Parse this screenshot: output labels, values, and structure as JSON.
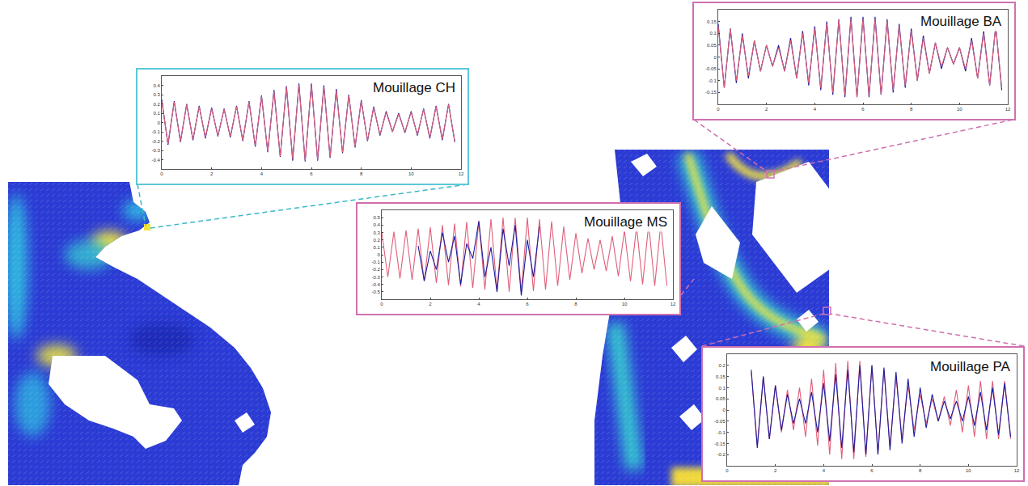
{
  "chart_data": [
    {
      "type": "line",
      "title": "Mouillage CH",
      "x": [
        0,
        0.25,
        0.5,
        0.75,
        1,
        1.25,
        1.5,
        1.75,
        2,
        2.25,
        2.5,
        2.75,
        3,
        3.25,
        3.5,
        3.75,
        4,
        4.25,
        4.5,
        4.75,
        5,
        5.25,
        5.5,
        5.75,
        6,
        6.25,
        6.5,
        6.75,
        7,
        7.25,
        7.5,
        7.75,
        8,
        8.25,
        8.5,
        8.75,
        9,
        9.25,
        9.5,
        9.75,
        10,
        10.25,
        10.5,
        10.75,
        11,
        11.25,
        11.5,
        11.75
      ],
      "xlim": [
        0,
        12
      ],
      "xticks": [
        0,
        2,
        4,
        6,
        8,
        10,
        12
      ],
      "ylim": [
        -0.5,
        0.5
      ],
      "yticks": [
        -0.4,
        -0.3,
        -0.2,
        -0.1,
        0,
        0.1,
        0.2,
        0.3,
        0.4
      ],
      "grid": false,
      "series": [
        {
          "color": "#1c1c9c",
          "values": [
            0.25,
            -0.24,
            0.23,
            -0.21,
            0.2,
            -0.19,
            0.18,
            -0.17,
            0.16,
            -0.15,
            0.15,
            -0.16,
            0.18,
            -0.2,
            0.23,
            -0.26,
            0.29,
            -0.32,
            0.35,
            -0.37,
            0.39,
            -0.41,
            0.42,
            -0.42,
            0.42,
            -0.41,
            0.4,
            -0.38,
            0.36,
            -0.33,
            0.3,
            -0.27,
            0.24,
            -0.2,
            0.17,
            -0.14,
            0.12,
            -0.1,
            0.1,
            -0.11,
            0.12,
            -0.14,
            0.15,
            -0.17,
            0.18,
            -0.19,
            0.2,
            -0.21
          ]
        },
        {
          "color": "#e0607a",
          "values": [
            0.23,
            -0.23,
            0.22,
            -0.2,
            0.19,
            -0.18,
            0.17,
            -0.16,
            0.15,
            -0.14,
            0.14,
            -0.15,
            0.17,
            -0.19,
            0.22,
            -0.25,
            0.28,
            -0.31,
            0.33,
            -0.36,
            0.38,
            -0.39,
            0.4,
            -0.41,
            0.4,
            -0.4,
            0.38,
            -0.37,
            0.34,
            -0.32,
            0.29,
            -0.26,
            0.23,
            -0.19,
            0.16,
            -0.13,
            0.11,
            -0.1,
            0.09,
            -0.1,
            0.11,
            -0.13,
            0.14,
            -0.16,
            0.17,
            -0.18,
            0.19,
            -0.2
          ]
        }
      ]
    },
    {
      "type": "line",
      "title": "Mouillage BA",
      "x": [
        0,
        0.25,
        0.5,
        0.75,
        1,
        1.25,
        1.5,
        1.75,
        2,
        2.25,
        2.5,
        2.75,
        3,
        3.25,
        3.5,
        3.75,
        4,
        4.25,
        4.5,
        4.75,
        5,
        5.25,
        5.5,
        5.75,
        6,
        6.25,
        6.5,
        6.75,
        7,
        7.25,
        7.5,
        7.75,
        8,
        8.25,
        8.5,
        8.75,
        9,
        9.25,
        9.5,
        9.75,
        10,
        10.25,
        10.5,
        10.75,
        11,
        11.25,
        11.5,
        11.75
      ],
      "xlim": [
        0,
        12
      ],
      "xticks": [
        0,
        2,
        4,
        6,
        8,
        10,
        12
      ],
      "ylim": [
        -0.2,
        0.2
      ],
      "yticks": [
        -0.15,
        -0.1,
        -0.05,
        0,
        0.05,
        0.1,
        0.15
      ],
      "grid": false,
      "series": [
        {
          "color": "#1c1c9c",
          "values": [
            0.14,
            -0.13,
            0.12,
            -0.11,
            0.1,
            -0.09,
            0.07,
            -0.06,
            0.05,
            -0.04,
            0.05,
            -0.06,
            0.08,
            -0.09,
            0.11,
            -0.12,
            0.13,
            -0.14,
            0.15,
            -0.16,
            0.16,
            -0.17,
            0.17,
            -0.17,
            0.17,
            -0.17,
            0.17,
            -0.16,
            0.16,
            -0.15,
            0.14,
            -0.13,
            0.12,
            -0.1,
            0.09,
            -0.07,
            0.06,
            -0.05,
            0.04,
            -0.03,
            0.04,
            -0.06,
            0.08,
            -0.09,
            0.11,
            -0.12,
            0.13,
            -0.14
          ]
        },
        {
          "color": "#e0607a",
          "values": [
            0.13,
            -0.13,
            0.12,
            -0.1,
            0.09,
            -0.08,
            0.07,
            -0.06,
            0.05,
            -0.04,
            0.04,
            -0.06,
            0.07,
            -0.09,
            0.1,
            -0.11,
            0.12,
            -0.13,
            0.14,
            -0.15,
            0.16,
            -0.16,
            0.16,
            -0.17,
            0.16,
            -0.16,
            0.16,
            -0.16,
            0.15,
            -0.14,
            0.13,
            -0.12,
            0.11,
            -0.1,
            0.08,
            -0.07,
            0.06,
            -0.04,
            0.04,
            -0.03,
            0.04,
            -0.05,
            0.07,
            -0.09,
            0.1,
            -0.12,
            0.13,
            -0.13
          ]
        }
      ]
    },
    {
      "type": "line",
      "title": "Mouillage MS",
      "x": [
        0,
        0.25,
        0.5,
        0.75,
        1,
        1.25,
        1.5,
        1.75,
        2,
        2.25,
        2.5,
        2.75,
        3,
        3.25,
        3.5,
        3.75,
        4,
        4.25,
        4.5,
        4.75,
        5,
        5.25,
        5.5,
        5.75,
        6,
        6.25,
        6.5,
        6.75,
        7,
        7.25,
        7.5,
        7.75,
        8,
        8.25,
        8.5,
        8.75,
        9,
        9.25,
        9.5,
        9.75,
        10,
        10.25,
        10.5,
        10.75,
        11,
        11.25,
        11.5,
        11.75
      ],
      "xlim": [
        0,
        12
      ],
      "xticks": [
        0,
        2,
        4,
        6,
        8,
        10,
        12
      ],
      "ylim": [
        -0.6,
        0.6
      ],
      "yticks": [
        -0.5,
        -0.4,
        -0.3,
        -0.2,
        -0.1,
        0,
        0.1,
        0.2,
        0.3,
        0.4,
        0.5
      ],
      "grid": false,
      "series": [
        {
          "color": "#e0607a",
          "values": [
            0.3,
            -0.3,
            0.31,
            -0.32,
            0.33,
            -0.34,
            0.35,
            -0.36,
            0.37,
            -0.38,
            0.4,
            -0.41,
            0.42,
            -0.43,
            0.44,
            -0.45,
            0.46,
            -0.47,
            0.48,
            -0.49,
            0.5,
            -0.5,
            0.5,
            -0.5,
            0.5,
            -0.49,
            0.48,
            -0.47,
            0.45,
            -0.42,
            0.38,
            -0.34,
            0.29,
            -0.25,
            0.22,
            -0.2,
            0.2,
            -0.22,
            0.25,
            -0.29,
            0.33,
            -0.36,
            0.38,
            -0.4,
            0.41,
            -0.42,
            0.42,
            -0.42
          ]
        },
        {
          "color": "#1c1c9c",
          "values": [
            null,
            null,
            null,
            null,
            null,
            null,
            0.12,
            -0.35,
            0.05,
            -0.2,
            0.3,
            -0.1,
            0.25,
            -0.4,
            0.15,
            -0.05,
            0.45,
            -0.3,
            0.1,
            -0.5,
            0.35,
            -0.15,
            0.4,
            -0.55,
            0.2,
            -0.3,
            0.38,
            null,
            null,
            null,
            null,
            null,
            null,
            null,
            null,
            null,
            null,
            null,
            null,
            null,
            null,
            null,
            null,
            null,
            null,
            null,
            null,
            null
          ]
        }
      ]
    },
    {
      "type": "line",
      "title": "Mouillage PA",
      "x": [
        0,
        0.25,
        0.5,
        0.75,
        1,
        1.25,
        1.5,
        1.75,
        2,
        2.25,
        2.5,
        2.75,
        3,
        3.25,
        3.5,
        3.75,
        4,
        4.25,
        4.5,
        4.75,
        5,
        5.25,
        5.5,
        5.75,
        6,
        6.25,
        6.5,
        6.75,
        7,
        7.25,
        7.5,
        7.75,
        8,
        8.25,
        8.5,
        8.75,
        9,
        9.25,
        9.5,
        9.75,
        10,
        10.25,
        10.5,
        10.75,
        11,
        11.25,
        11.5,
        11.75
      ],
      "xlim": [
        0,
        12
      ],
      "xticks": [
        0,
        2,
        4,
        6,
        8,
        10,
        12
      ],
      "ylim": [
        -0.25,
        0.25
      ],
      "yticks": [
        -0.2,
        -0.15,
        -0.1,
        -0.05,
        0,
        0.05,
        0.1,
        0.15,
        0.2
      ],
      "grid": false,
      "series": [
        {
          "color": "#e0607a",
          "values": [
            null,
            null,
            null,
            null,
            0.17,
            -0.16,
            0.15,
            -0.13,
            0.11,
            -0.1,
            0.09,
            -0.09,
            0.1,
            -0.12,
            0.14,
            -0.16,
            0.18,
            -0.2,
            0.21,
            -0.22,
            0.22,
            -0.22,
            0.22,
            -0.21,
            0.2,
            -0.19,
            0.18,
            -0.16,
            0.15,
            -0.13,
            0.11,
            -0.09,
            0.07,
            -0.06,
            0.05,
            -0.05,
            0.06,
            -0.07,
            0.09,
            -0.1,
            0.11,
            -0.12,
            0.13,
            -0.13,
            0.13,
            -0.13,
            0.13,
            -0.13
          ]
        },
        {
          "color": "#1c1c9c",
          "values": [
            null,
            null,
            null,
            null,
            0.18,
            -0.17,
            0.15,
            -0.13,
            0.11,
            -0.09,
            0.07,
            -0.06,
            0.05,
            -0.06,
            0.08,
            -0.1,
            0.12,
            -0.14,
            0.16,
            -0.17,
            0.18,
            -0.19,
            0.2,
            -0.2,
            0.2,
            -0.2,
            0.19,
            -0.18,
            0.17,
            -0.15,
            0.14,
            -0.12,
            0.1,
            -0.08,
            0.07,
            -0.05,
            0.04,
            -0.04,
            0.04,
            -0.05,
            0.06,
            -0.07,
            0.08,
            -0.09,
            0.1,
            -0.11,
            0.12,
            -0.12
          ]
        }
      ]
    }
  ]
}
